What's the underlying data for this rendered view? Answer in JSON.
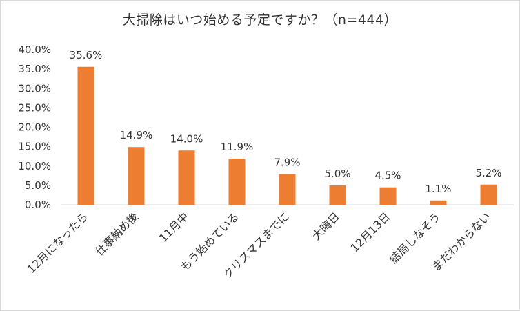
{
  "chart_data": {
    "type": "bar",
    "title": "大掃除はいつ始める予定ですか？（n=444）",
    "categories": [
      "12月になったら",
      "仕事納め後",
      "11月中",
      "もう始めている",
      "クリスマスまでに",
      "大晦日",
      "12月13日",
      "結局しなそう",
      "まだわからない"
    ],
    "values": [
      35.6,
      14.9,
      14.0,
      11.9,
      7.9,
      5.0,
      4.5,
      1.1,
      5.2
    ],
    "value_labels": [
      "35.6%",
      "14.9%",
      "14.0%",
      "11.9%",
      "7.9%",
      "5.0%",
      "4.5%",
      "1.1%",
      "5.2%"
    ],
    "ylim": [
      0,
      40
    ],
    "yticks": [
      "0.0%",
      "5.0%",
      "10.0%",
      "15.0%",
      "20.0%",
      "25.0%",
      "30.0%",
      "35.0%",
      "40.0%"
    ],
    "grid": false,
    "legend": "none",
    "bar_color": "#ED7D31",
    "xlabel": "",
    "ylabel": ""
  }
}
